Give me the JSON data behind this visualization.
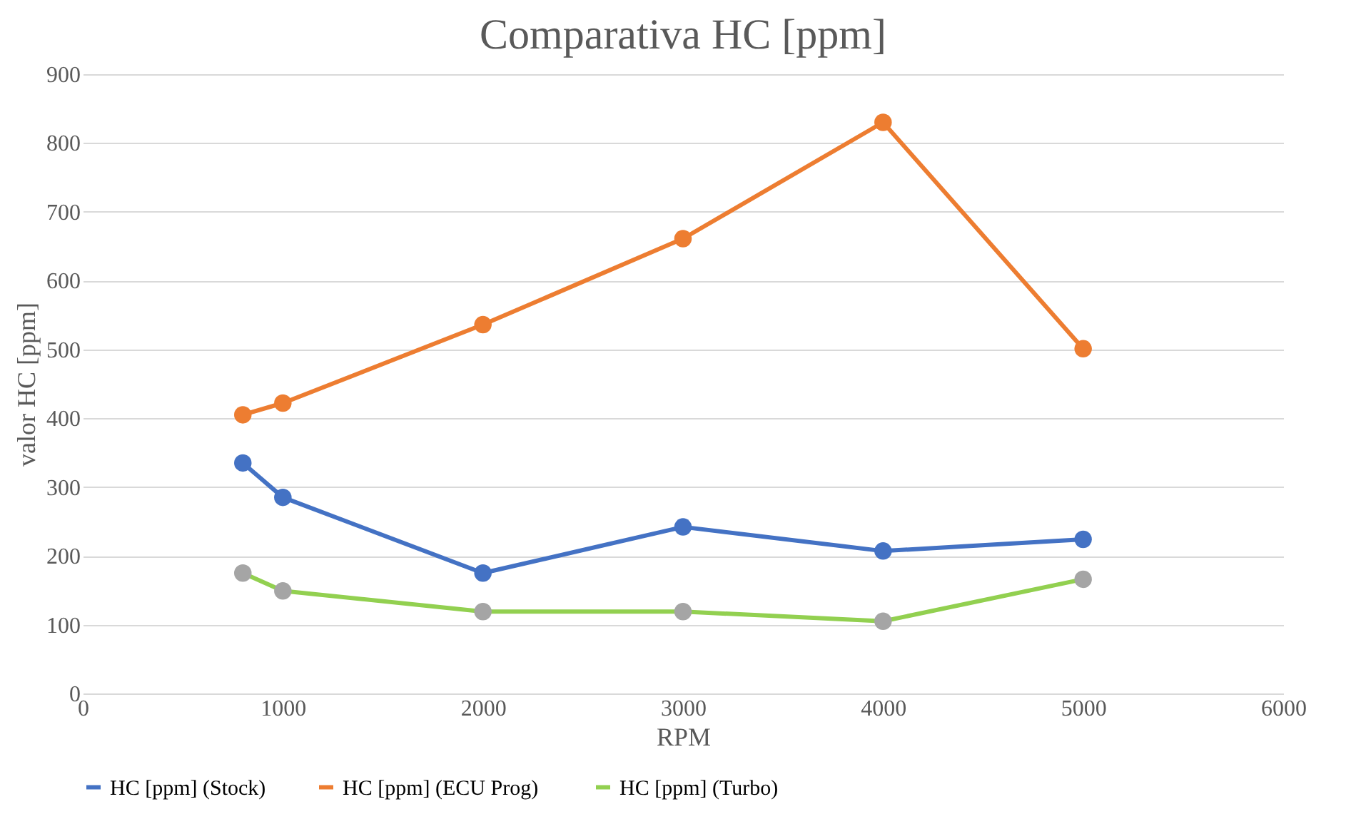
{
  "chart_data": {
    "type": "line",
    "title": "Comparativa HC [ppm]",
    "xlabel": "RPM",
    "ylabel": "valor HC [ppm]",
    "x": [
      800,
      1000,
      2000,
      3000,
      4000,
      5000
    ],
    "series": [
      {
        "name": "HC [ppm] (Stock)",
        "color": "#4472c4",
        "values": [
          335,
          285,
          175,
          242,
          207,
          224
        ]
      },
      {
        "name": "HC [ppm]  (ECU Prog)",
        "color": "#ed7d31",
        "values": [
          405,
          422,
          536,
          661,
          830,
          501
        ]
      },
      {
        "name": "HC [ppm]  (Turbo)",
        "color": "#92d050",
        "colors": [
          "#a5a5a5",
          "#a5a5a5",
          "#a5a5a5",
          "#a5a5a5",
          "#a5a5a5",
          "#a5a5a5"
        ],
        "values": [
          175,
          149,
          119,
          119,
          105,
          166
        ]
      }
    ],
    "xlim": [
      0,
      6000
    ],
    "xticks": [
      0,
      1000,
      2000,
      3000,
      4000,
      5000,
      6000
    ],
    "ylim": [
      0,
      900
    ],
    "yticks": [
      0,
      100,
      200,
      300,
      400,
      500,
      600,
      700,
      800,
      900
    ],
    "grid": "y",
    "legend": "bottom",
    "marker": "circle",
    "line_style": "solid"
  }
}
